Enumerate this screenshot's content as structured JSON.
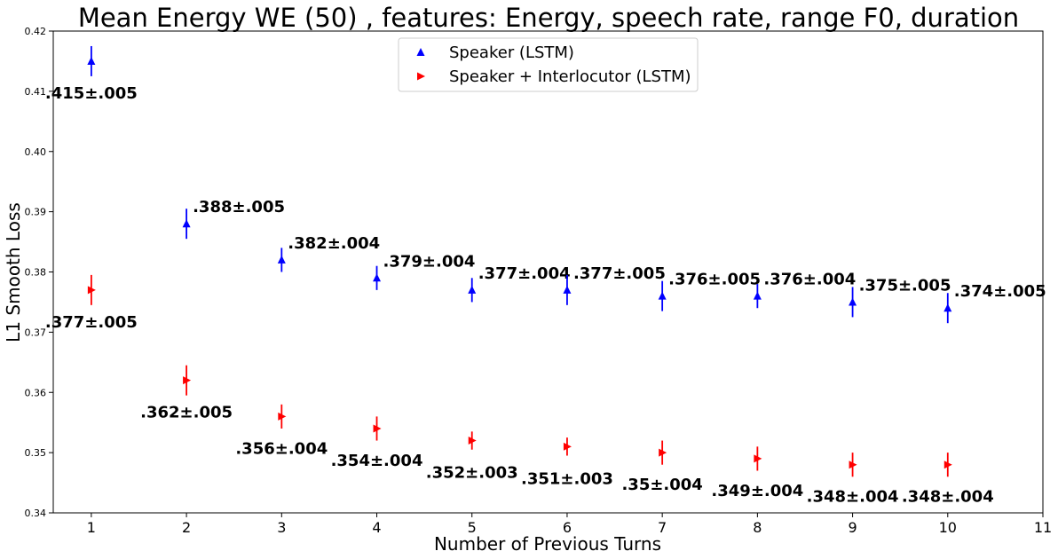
{
  "chart_data": {
    "type": "scatter",
    "title": "Mean Energy WE (50) , features: Energy, speech rate, range F0, duration",
    "xlabel": "Number of Previous Turns",
    "ylabel": "L1 Smooth Loss",
    "xlim": [
      0.6,
      11
    ],
    "ylim": [
      0.34,
      0.42
    ],
    "xticks": [
      1,
      2,
      3,
      4,
      5,
      6,
      7,
      8,
      9,
      10,
      11
    ],
    "yticks": [
      0.34,
      0.35,
      0.36,
      0.37,
      0.38,
      0.39,
      0.4,
      0.41,
      0.42
    ],
    "ytick_labels": [
      "0.34",
      "0.35",
      "0.36",
      "0.37",
      "0.38",
      "0.39",
      "0.40",
      "0.41",
      "0.42"
    ],
    "grid": false,
    "legend_position": "top-center",
    "series": [
      {
        "name": "Speaker (LSTM)",
        "color": "#0000ff",
        "marker": "triangle-up",
        "x": [
          1,
          2,
          3,
          4,
          5,
          6,
          7,
          8,
          9,
          10
        ],
        "y": [
          0.415,
          0.388,
          0.382,
          0.379,
          0.377,
          0.377,
          0.376,
          0.376,
          0.375,
          0.374
        ],
        "err": [
          0.0025,
          0.0025,
          0.002,
          0.002,
          0.002,
          0.0025,
          0.0025,
          0.002,
          0.0025,
          0.0025
        ],
        "labels": [
          ".415±.005",
          ".388±.005",
          ".382±.004",
          ".379±.004",
          ".377±.004",
          ".377±.005",
          ".376±.005",
          ".376±.004",
          ".375±.005",
          ".374±.005"
        ],
        "label_side": [
          "below",
          "right",
          "right",
          "right",
          "right",
          "right",
          "right",
          "right",
          "right",
          "right"
        ]
      },
      {
        "name": "Speaker + Interlocutor (LSTM)",
        "color": "#ff0000",
        "marker": "triangle-right",
        "x": [
          1,
          2,
          3,
          4,
          5,
          6,
          7,
          8,
          9,
          10
        ],
        "y": [
          0.377,
          0.362,
          0.356,
          0.354,
          0.352,
          0.351,
          0.35,
          0.349,
          0.348,
          0.348
        ],
        "err": [
          0.0025,
          0.0025,
          0.002,
          0.002,
          0.0015,
          0.0015,
          0.002,
          0.002,
          0.002,
          0.002
        ],
        "labels": [
          ".377±.005",
          ".362±.005",
          ".356±.004",
          ".354±.004",
          ".352±.003",
          ".351±.003",
          ".35±.004",
          ".349±.004",
          ".348±.004",
          ".348±.004"
        ],
        "label_side": [
          "below",
          "below",
          "below",
          "below",
          "below",
          "below",
          "below",
          "below",
          "below",
          "below"
        ]
      }
    ]
  }
}
